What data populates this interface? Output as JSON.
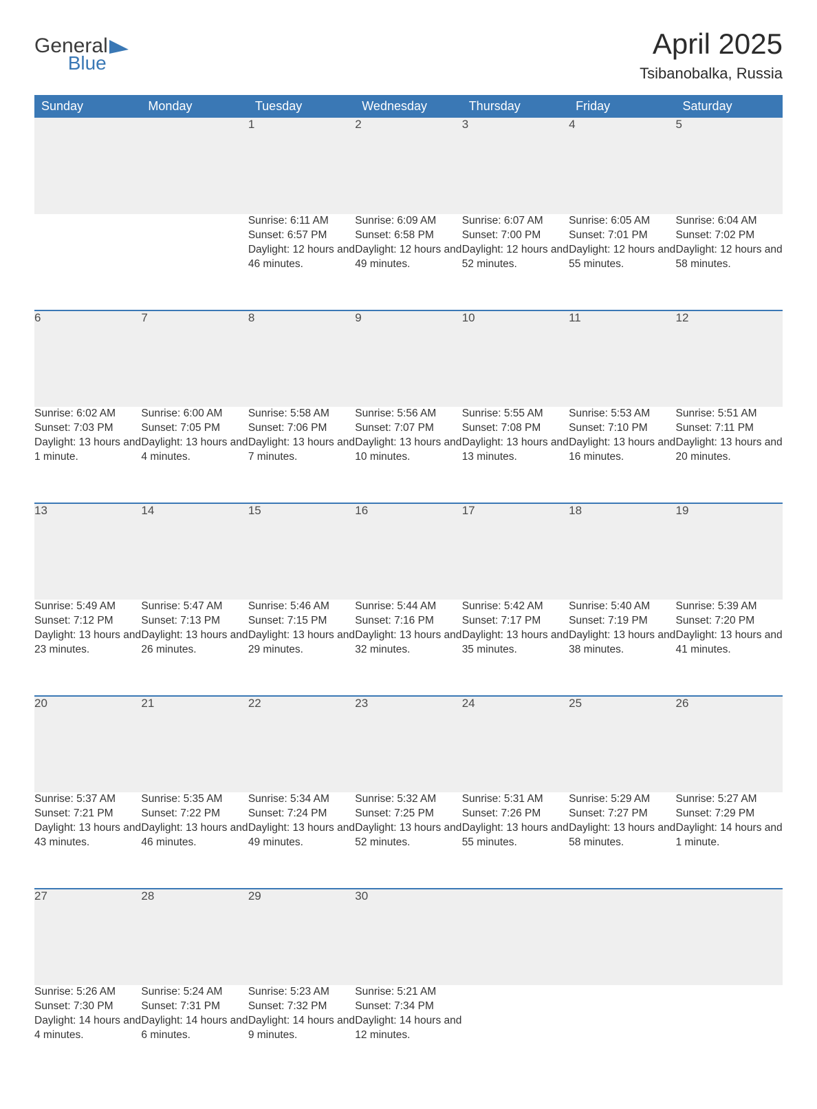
{
  "logo": {
    "word1": "General",
    "word2": "Blue",
    "mark_color": "#3a78b5"
  },
  "title": "April 2025",
  "location": "Tsibanobalka, Russia",
  "colors": {
    "header_bg": "#3a78b5",
    "header_text": "#ffffff",
    "daynum_bg": "#efefef",
    "border_top": "#3a78b5",
    "body_text": "#333333",
    "page_bg": "#ffffff"
  },
  "fonts": {
    "title_size": 42,
    "location_size": 22,
    "dayheader_size": 18,
    "body_size": 15.5
  },
  "day_headers": [
    "Sunday",
    "Monday",
    "Tuesday",
    "Wednesday",
    "Thursday",
    "Friday",
    "Saturday"
  ],
  "weeks": [
    [
      null,
      null,
      {
        "n": "1",
        "sunrise": "6:11 AM",
        "sunset": "6:57 PM",
        "daylight": "12 hours and 46 minutes."
      },
      {
        "n": "2",
        "sunrise": "6:09 AM",
        "sunset": "6:58 PM",
        "daylight": "12 hours and 49 minutes."
      },
      {
        "n": "3",
        "sunrise": "6:07 AM",
        "sunset": "7:00 PM",
        "daylight": "12 hours and 52 minutes."
      },
      {
        "n": "4",
        "sunrise": "6:05 AM",
        "sunset": "7:01 PM",
        "daylight": "12 hours and 55 minutes."
      },
      {
        "n": "5",
        "sunrise": "6:04 AM",
        "sunset": "7:02 PM",
        "daylight": "12 hours and 58 minutes."
      }
    ],
    [
      {
        "n": "6",
        "sunrise": "6:02 AM",
        "sunset": "7:03 PM",
        "daylight": "13 hours and 1 minute."
      },
      {
        "n": "7",
        "sunrise": "6:00 AM",
        "sunset": "7:05 PM",
        "daylight": "13 hours and 4 minutes."
      },
      {
        "n": "8",
        "sunrise": "5:58 AM",
        "sunset": "7:06 PM",
        "daylight": "13 hours and 7 minutes."
      },
      {
        "n": "9",
        "sunrise": "5:56 AM",
        "sunset": "7:07 PM",
        "daylight": "13 hours and 10 minutes."
      },
      {
        "n": "10",
        "sunrise": "5:55 AM",
        "sunset": "7:08 PM",
        "daylight": "13 hours and 13 minutes."
      },
      {
        "n": "11",
        "sunrise": "5:53 AM",
        "sunset": "7:10 PM",
        "daylight": "13 hours and 16 minutes."
      },
      {
        "n": "12",
        "sunrise": "5:51 AM",
        "sunset": "7:11 PM",
        "daylight": "13 hours and 20 minutes."
      }
    ],
    [
      {
        "n": "13",
        "sunrise": "5:49 AM",
        "sunset": "7:12 PM",
        "daylight": "13 hours and 23 minutes."
      },
      {
        "n": "14",
        "sunrise": "5:47 AM",
        "sunset": "7:13 PM",
        "daylight": "13 hours and 26 minutes."
      },
      {
        "n": "15",
        "sunrise": "5:46 AM",
        "sunset": "7:15 PM",
        "daylight": "13 hours and 29 minutes."
      },
      {
        "n": "16",
        "sunrise": "5:44 AM",
        "sunset": "7:16 PM",
        "daylight": "13 hours and 32 minutes."
      },
      {
        "n": "17",
        "sunrise": "5:42 AM",
        "sunset": "7:17 PM",
        "daylight": "13 hours and 35 minutes."
      },
      {
        "n": "18",
        "sunrise": "5:40 AM",
        "sunset": "7:19 PM",
        "daylight": "13 hours and 38 minutes."
      },
      {
        "n": "19",
        "sunrise": "5:39 AM",
        "sunset": "7:20 PM",
        "daylight": "13 hours and 41 minutes."
      }
    ],
    [
      {
        "n": "20",
        "sunrise": "5:37 AM",
        "sunset": "7:21 PM",
        "daylight": "13 hours and 43 minutes."
      },
      {
        "n": "21",
        "sunrise": "5:35 AM",
        "sunset": "7:22 PM",
        "daylight": "13 hours and 46 minutes."
      },
      {
        "n": "22",
        "sunrise": "5:34 AM",
        "sunset": "7:24 PM",
        "daylight": "13 hours and 49 minutes."
      },
      {
        "n": "23",
        "sunrise": "5:32 AM",
        "sunset": "7:25 PM",
        "daylight": "13 hours and 52 minutes."
      },
      {
        "n": "24",
        "sunrise": "5:31 AM",
        "sunset": "7:26 PM",
        "daylight": "13 hours and 55 minutes."
      },
      {
        "n": "25",
        "sunrise": "5:29 AM",
        "sunset": "7:27 PM",
        "daylight": "13 hours and 58 minutes."
      },
      {
        "n": "26",
        "sunrise": "5:27 AM",
        "sunset": "7:29 PM",
        "daylight": "14 hours and 1 minute."
      }
    ],
    [
      {
        "n": "27",
        "sunrise": "5:26 AM",
        "sunset": "7:30 PM",
        "daylight": "14 hours and 4 minutes."
      },
      {
        "n": "28",
        "sunrise": "5:24 AM",
        "sunset": "7:31 PM",
        "daylight": "14 hours and 6 minutes."
      },
      {
        "n": "29",
        "sunrise": "5:23 AM",
        "sunset": "7:32 PM",
        "daylight": "14 hours and 9 minutes."
      },
      {
        "n": "30",
        "sunrise": "5:21 AM",
        "sunset": "7:34 PM",
        "daylight": "14 hours and 12 minutes."
      },
      null,
      null,
      null
    ]
  ]
}
